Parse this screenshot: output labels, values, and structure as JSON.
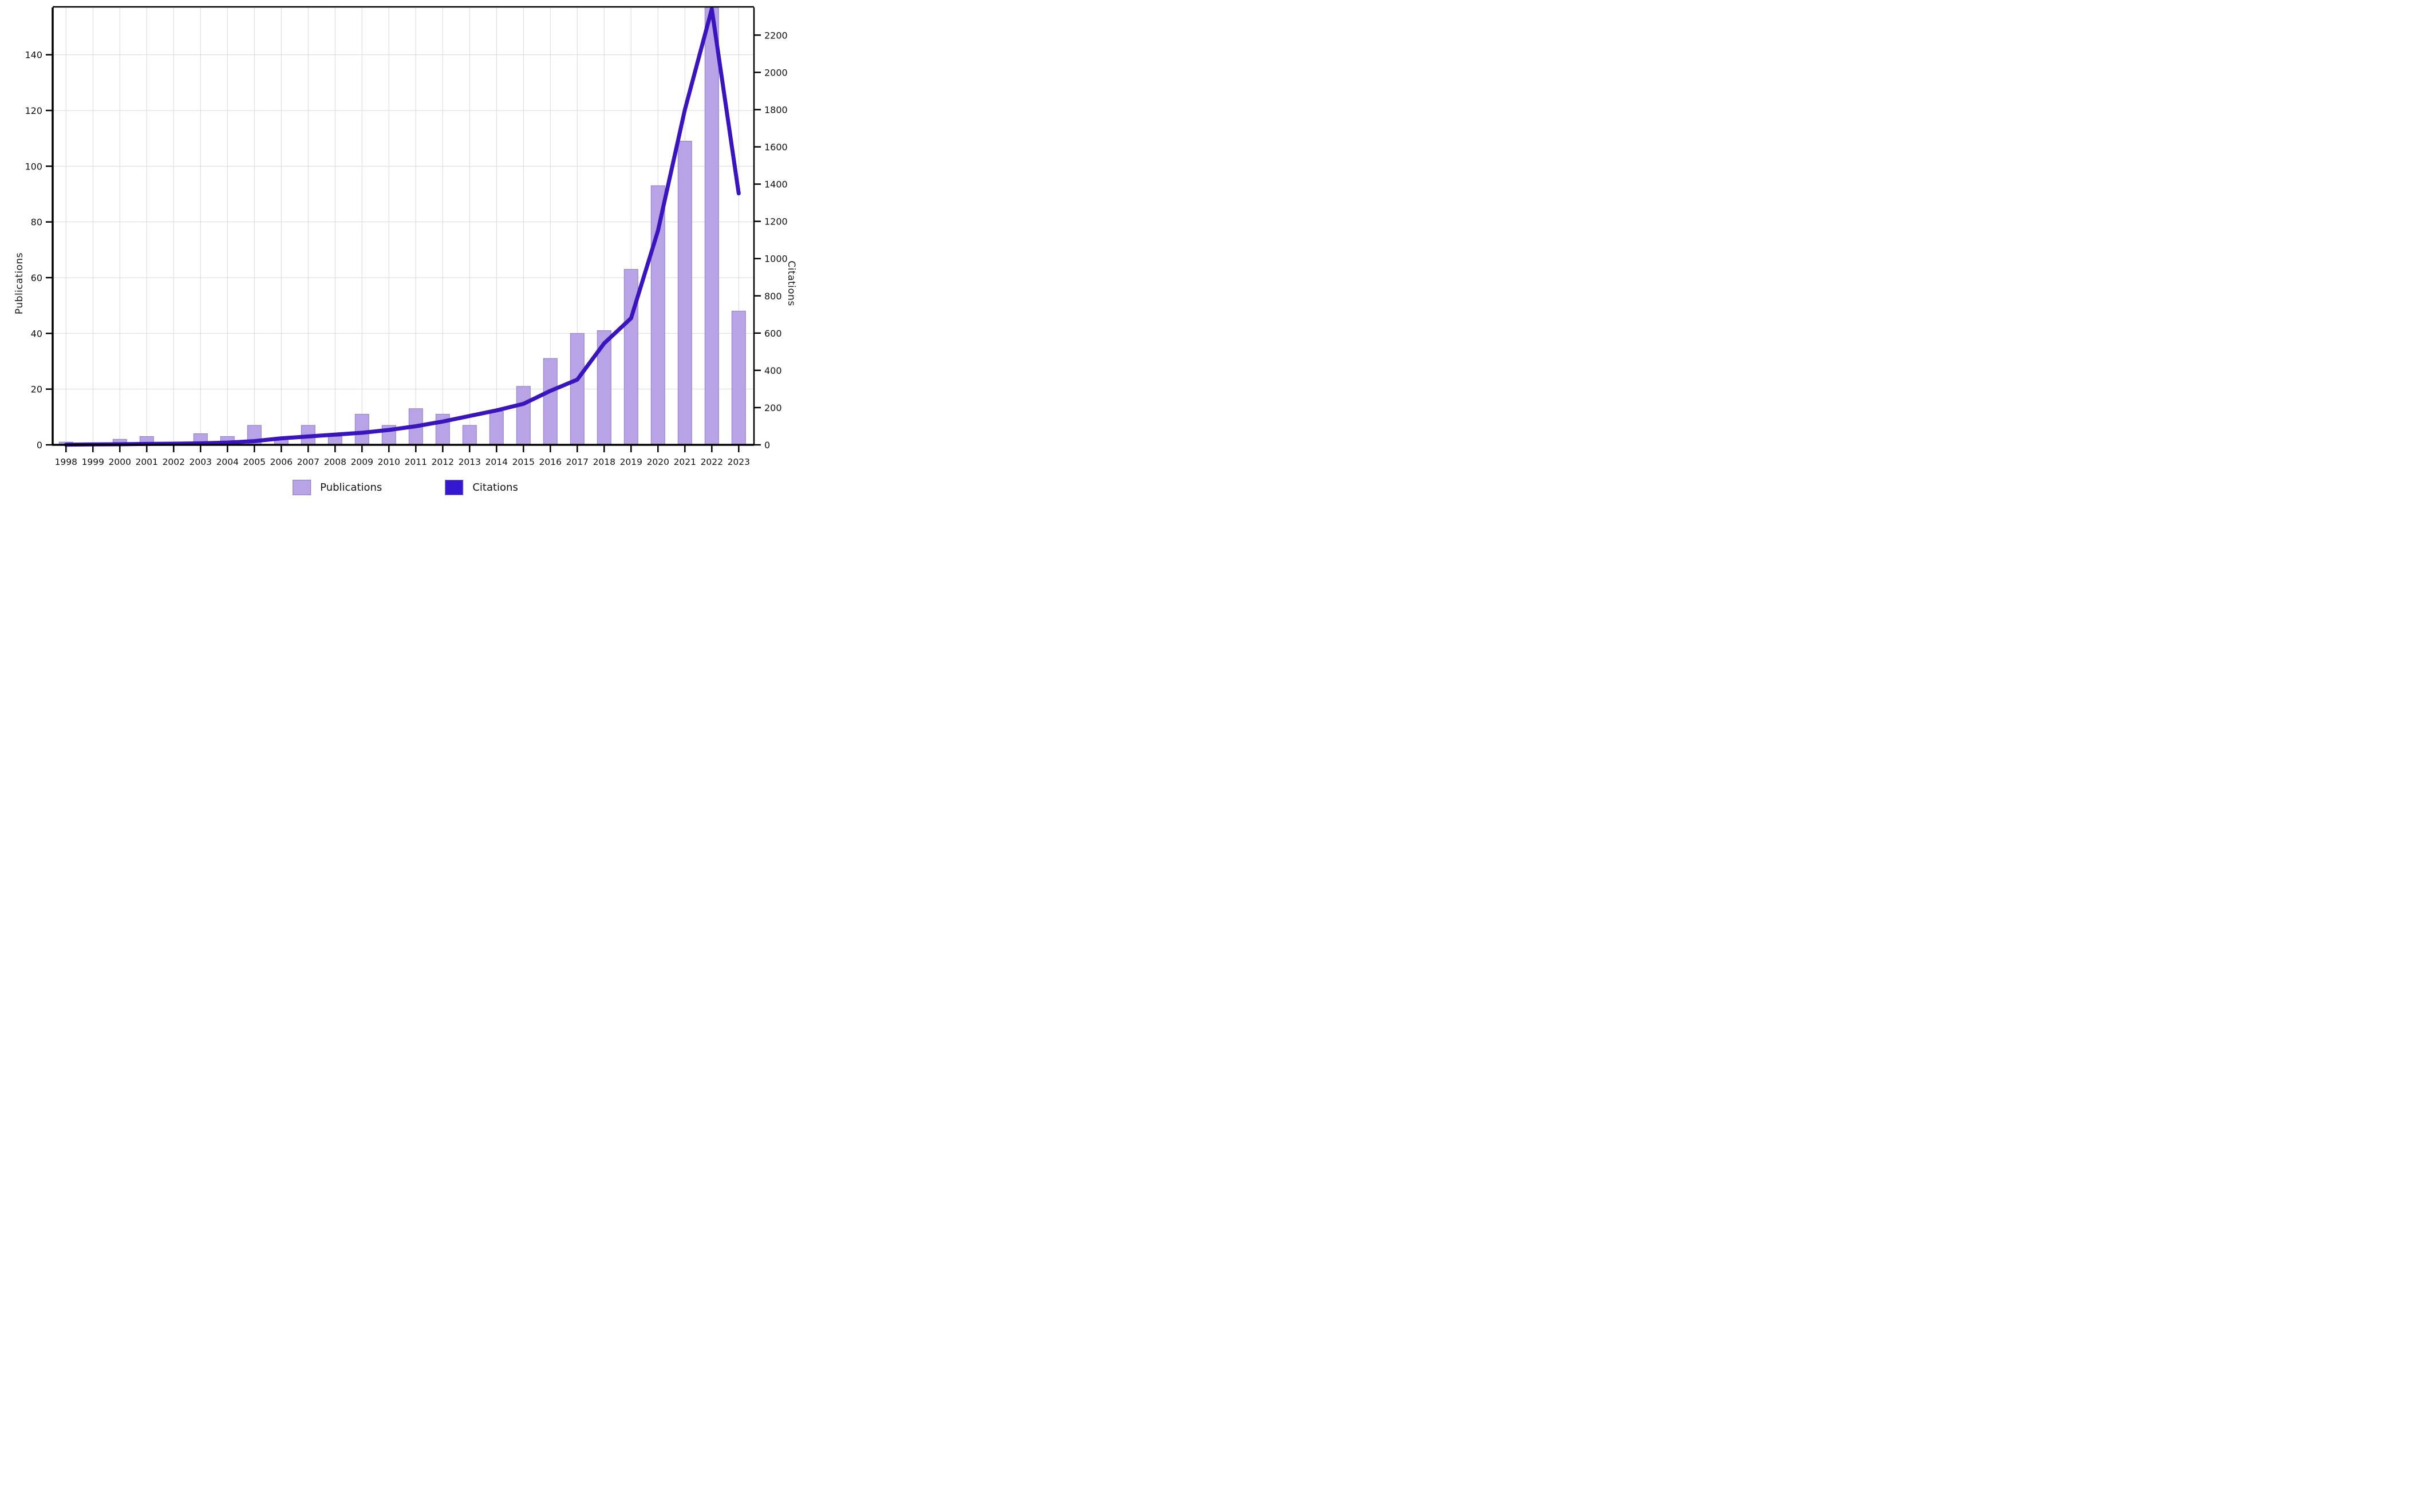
{
  "page": {
    "background": "#ffffff"
  },
  "chart_data": {
    "type": "bar",
    "subtype": "bar-line-combo",
    "title": "",
    "categories": [
      "1998",
      "1999",
      "2000",
      "2001",
      "2002",
      "2003",
      "2004",
      "2005",
      "2006",
      "2007",
      "2008",
      "2009",
      "2010",
      "2011",
      "2012",
      "2013",
      "2014",
      "2015",
      "2016",
      "2017",
      "2018",
      "2019",
      "2020",
      "2021",
      "2022",
      "2023"
    ],
    "series": [
      {
        "name": "Publications",
        "chart": "bar",
        "axis": "left",
        "color": "#b7a3e6",
        "border_color": "#9080c8",
        "values": [
          1,
          0,
          2,
          3,
          0,
          4,
          3,
          7,
          2,
          7,
          3,
          11,
          7,
          13,
          11,
          7,
          12,
          21,
          31,
          40,
          41,
          63,
          93,
          109,
          157,
          48
        ]
      },
      {
        "name": "Citations",
        "chart": "line",
        "axis": "right",
        "color": "#3a14bd",
        "values": [
          1,
          2,
          3,
          5,
          6,
          8,
          12,
          20,
          35,
          45,
          55,
          65,
          80,
          100,
          125,
          155,
          185,
          220,
          290,
          350,
          545,
          680,
          1150,
          1800,
          2340,
          1350
        ]
      }
    ],
    "left_axis": {
      "title": "Publications",
      "tick_values": [
        0,
        20,
        40,
        60,
        80,
        100,
        120,
        140
      ],
      "range": [
        0,
        157
      ]
    },
    "right_axis": {
      "title": "Citations",
      "tick_values": [
        0,
        200,
        400,
        600,
        800,
        1000,
        1200,
        1400,
        1600,
        1800,
        2000,
        2200
      ],
      "range": [
        0,
        2358
      ]
    },
    "x_axis": {
      "tick_labels": [
        "1998",
        "1999",
        "2000",
        "2001",
        "2002",
        "2003",
        "2004",
        "2005",
        "2006",
        "2007",
        "2008",
        "2009",
        "2010",
        "2011",
        "2012",
        "2013",
        "2014",
        "2015",
        "2016",
        "2017",
        "2018",
        "2019",
        "2020",
        "2021",
        "2022",
        "2023"
      ]
    },
    "legend": [
      {
        "label": "Publications",
        "swatch_color": "#b7a3e6"
      },
      {
        "label": "Citations",
        "swatch_color": "#3418cf"
      }
    ],
    "legend_position": "bottom",
    "grid": true
  },
  "colors": {
    "grid": "#d9d9d9",
    "axis": "#000000",
    "bar_fill": "#b7a3e6",
    "bar_border": "#9080c8",
    "line": "#3a14bd",
    "text": "#111111"
  }
}
